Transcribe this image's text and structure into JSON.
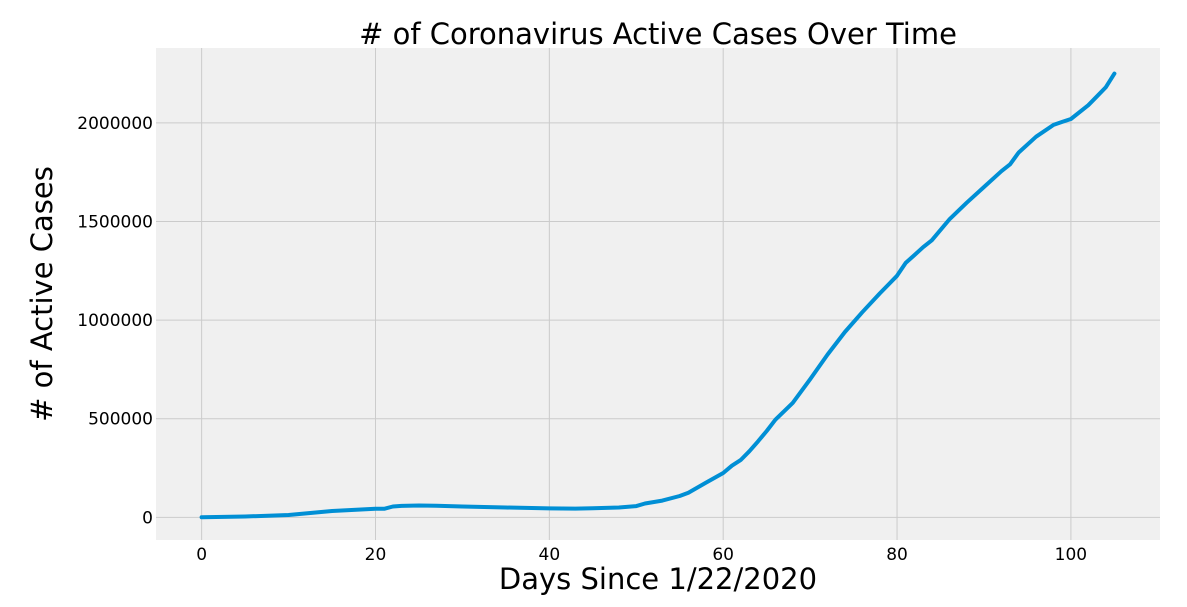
{
  "chart_data": {
    "type": "line",
    "title": "# of Coronavirus Active Cases Over Time",
    "xlabel": "Days Since 1/22/2020",
    "ylabel": "# of Active Cases",
    "xlim": [
      -5.25,
      110.25
    ],
    "ylim": [
      -115000,
      2380000
    ],
    "x_ticks": [
      0,
      20,
      40,
      60,
      80,
      100
    ],
    "y_ticks": [
      0,
      500000,
      1000000,
      1500000,
      2000000
    ],
    "grid": true,
    "colors": {
      "background": "#f0f0f0",
      "grid": "#cbcbcb",
      "series": "#008fd5"
    },
    "series": [
      {
        "x": [
          0,
          5,
          10,
          15,
          20,
          21,
          22,
          23,
          25,
          27,
          30,
          35,
          40,
          43,
          45,
          48,
          50,
          51,
          53,
          55,
          56,
          58,
          60,
          61,
          62,
          63,
          64,
          65,
          66,
          68,
          70,
          72,
          74,
          76,
          78,
          79,
          80,
          81,
          82,
          83,
          84,
          86,
          88,
          90,
          92,
          93,
          94,
          96,
          98,
          99,
          100,
          102,
          103,
          104,
          105
        ],
        "y": [
          500,
          4000,
          12000,
          32000,
          43000,
          43000,
          55000,
          58000,
          60000,
          59000,
          55000,
          50000,
          45000,
          44000,
          46000,
          50000,
          57000,
          70000,
          85000,
          108000,
          125000,
          175000,
          225000,
          262000,
          290000,
          335000,
          385000,
          438000,
          495000,
          580000,
          700000,
          825000,
          940000,
          1040000,
          1135000,
          1180000,
          1225000,
          1290000,
          1330000,
          1370000,
          1405000,
          1510000,
          1595000,
          1675000,
          1755000,
          1790000,
          1850000,
          1930000,
          1990000,
          2005000,
          2020000,
          2090000,
          2135000,
          2180000,
          2250000
        ]
      }
    ]
  }
}
